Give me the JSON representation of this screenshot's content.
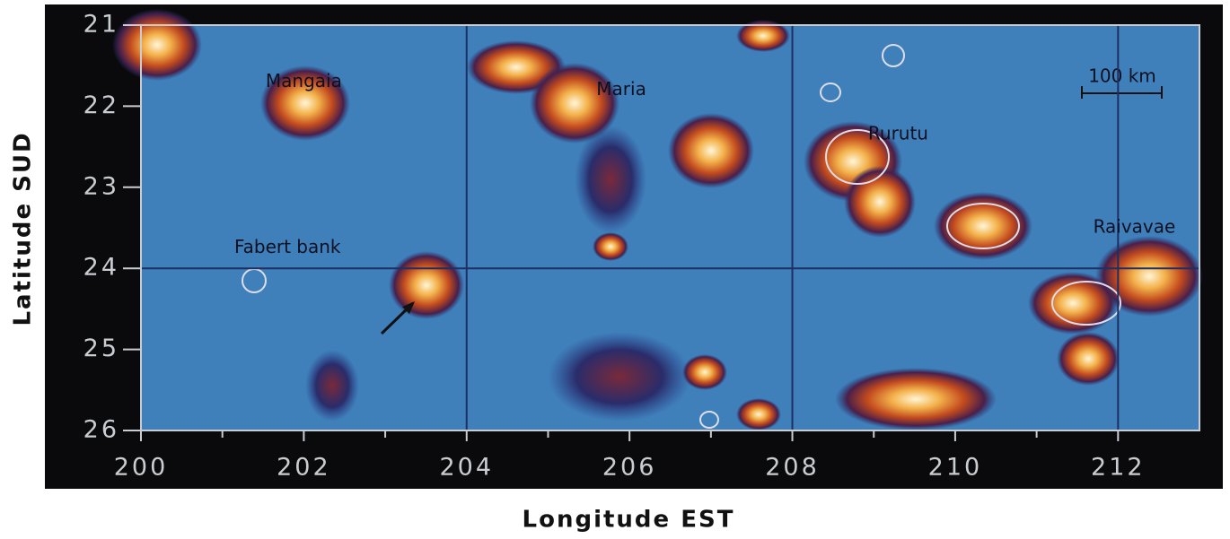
{
  "chart_data": {
    "type": "map",
    "xlabel": "Longitude EST",
    "ylabel": "Latitude SUD",
    "xlim": [
      200,
      213
    ],
    "ylim": [
      21,
      26
    ],
    "xticks": [
      200,
      202,
      204,
      206,
      208,
      210,
      212
    ],
    "xminorticks": [
      201,
      203,
      205,
      207,
      209,
      211
    ],
    "yticks": [
      21,
      22,
      23,
      24,
      25,
      26
    ],
    "gridx": [
      204,
      208,
      212
    ],
    "gridy": [
      24
    ],
    "annotations": [
      {
        "text": "Mangaia",
        "x": 202.0,
        "y": 21.7
      },
      {
        "text": "Maria",
        "x": 205.9,
        "y": 21.8
      },
      {
        "text": "Rurutu",
        "x": 209.3,
        "y": 22.35
      },
      {
        "text": "Fabert bank",
        "x": 201.8,
        "y": 23.75
      },
      {
        "text": "Raivavae",
        "x": 212.2,
        "y": 23.5
      }
    ],
    "scale_label": "100 km"
  }
}
